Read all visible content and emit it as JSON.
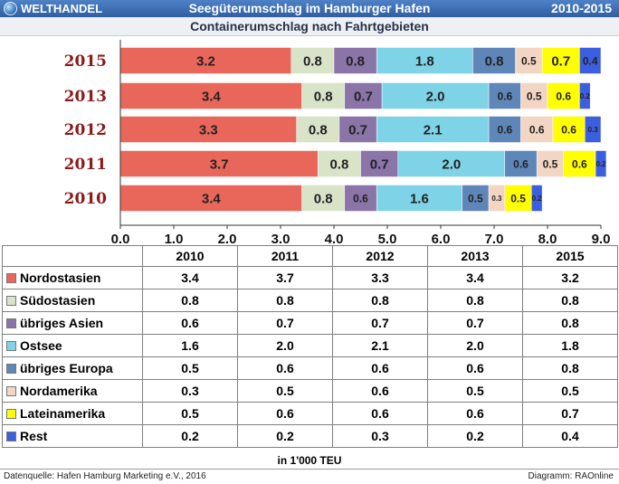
{
  "header": {
    "brand": "WELTHANDEL",
    "title": "Seegüterumschlag im Hamburger Hafen",
    "years": "2010-2015"
  },
  "subheader": "Containerumschlag nach Fahrtgebieten",
  "unit": "in 1'000 TEU",
  "footer": {
    "source": "Datenquelle: Hafen Hamburg Marketing e.V., 2016",
    "diagram": "Diagramm: RAOnline"
  },
  "chart_data": {
    "type": "bar",
    "orientation": "horizontal",
    "stacked": true,
    "categories": [
      "2015",
      "2013",
      "2012",
      "2011",
      "2010"
    ],
    "xlim": [
      0,
      9
    ],
    "xticks": [
      "0.0",
      "1.0",
      "2.0",
      "3.0",
      "4.0",
      "5.0",
      "6.0",
      "7.0",
      "8.0",
      "9.0"
    ],
    "series": [
      {
        "name": "Nordostasien",
        "color": "#e8675a",
        "label_color": "#ffffff",
        "values": [
          3.2,
          3.4,
          3.3,
          3.7,
          3.4
        ]
      },
      {
        "name": "Südostasien",
        "color": "#d8e3c8",
        "label_color": "#222222",
        "values": [
          0.8,
          0.8,
          0.8,
          0.8,
          0.8
        ]
      },
      {
        "name": "übriges Asien",
        "color": "#8a74a8",
        "label_color": "#ffff33",
        "values": [
          0.8,
          0.7,
          0.7,
          0.7,
          0.6
        ]
      },
      {
        "name": "Ostsee",
        "color": "#7fd3e6",
        "label_color": "#222222",
        "values": [
          1.8,
          2.0,
          2.1,
          2.0,
          1.6
        ]
      },
      {
        "name": "übriges Europa",
        "color": "#5f86b8",
        "label_color": "#111111",
        "values": [
          0.8,
          0.6,
          0.6,
          0.6,
          0.5
        ]
      },
      {
        "name": "Nordamerika",
        "color": "#f3d5c3",
        "label_color": "#222222",
        "values": [
          0.5,
          0.5,
          0.6,
          0.5,
          0.3
        ]
      },
      {
        "name": "Lateinamerika",
        "color": "#ffff00",
        "label_color": "#111111",
        "values": [
          0.7,
          0.6,
          0.6,
          0.6,
          0.5
        ]
      },
      {
        "name": "Rest",
        "color": "#3c5ee0",
        "label_color": "#ffffff",
        "values": [
          0.4,
          0.2,
          0.3,
          0.2,
          0.2
        ]
      }
    ],
    "table": {
      "columns": [
        "2010",
        "2011",
        "2012",
        "2013",
        "2015"
      ],
      "rows": [
        {
          "label": "Nordostasien",
          "values": [
            "3.4",
            "3.7",
            "3.3",
            "3.4",
            "3.2"
          ]
        },
        {
          "label": "Südostasien",
          "values": [
            "0.8",
            "0.8",
            "0.8",
            "0.8",
            "0.8"
          ]
        },
        {
          "label": "übriges Asien",
          "values": [
            "0.6",
            "0.7",
            "0.7",
            "0.7",
            "0.8"
          ]
        },
        {
          "label": "Ostsee",
          "values": [
            "1.6",
            "2.0",
            "2.1",
            "2.0",
            "1.8"
          ]
        },
        {
          "label": "übriges Europa",
          "values": [
            "0.5",
            "0.6",
            "0.6",
            "0.6",
            "0.8"
          ]
        },
        {
          "label": "Nordamerika",
          "values": [
            "0.3",
            "0.5",
            "0.6",
            "0.5",
            "0.5"
          ]
        },
        {
          "label": "Lateinamerika",
          "values": [
            "0.5",
            "0.6",
            "0.6",
            "0.6",
            "0.7"
          ]
        },
        {
          "label": "Rest",
          "values": [
            "0.2",
            "0.2",
            "0.3",
            "0.2",
            "0.4"
          ]
        }
      ]
    }
  }
}
